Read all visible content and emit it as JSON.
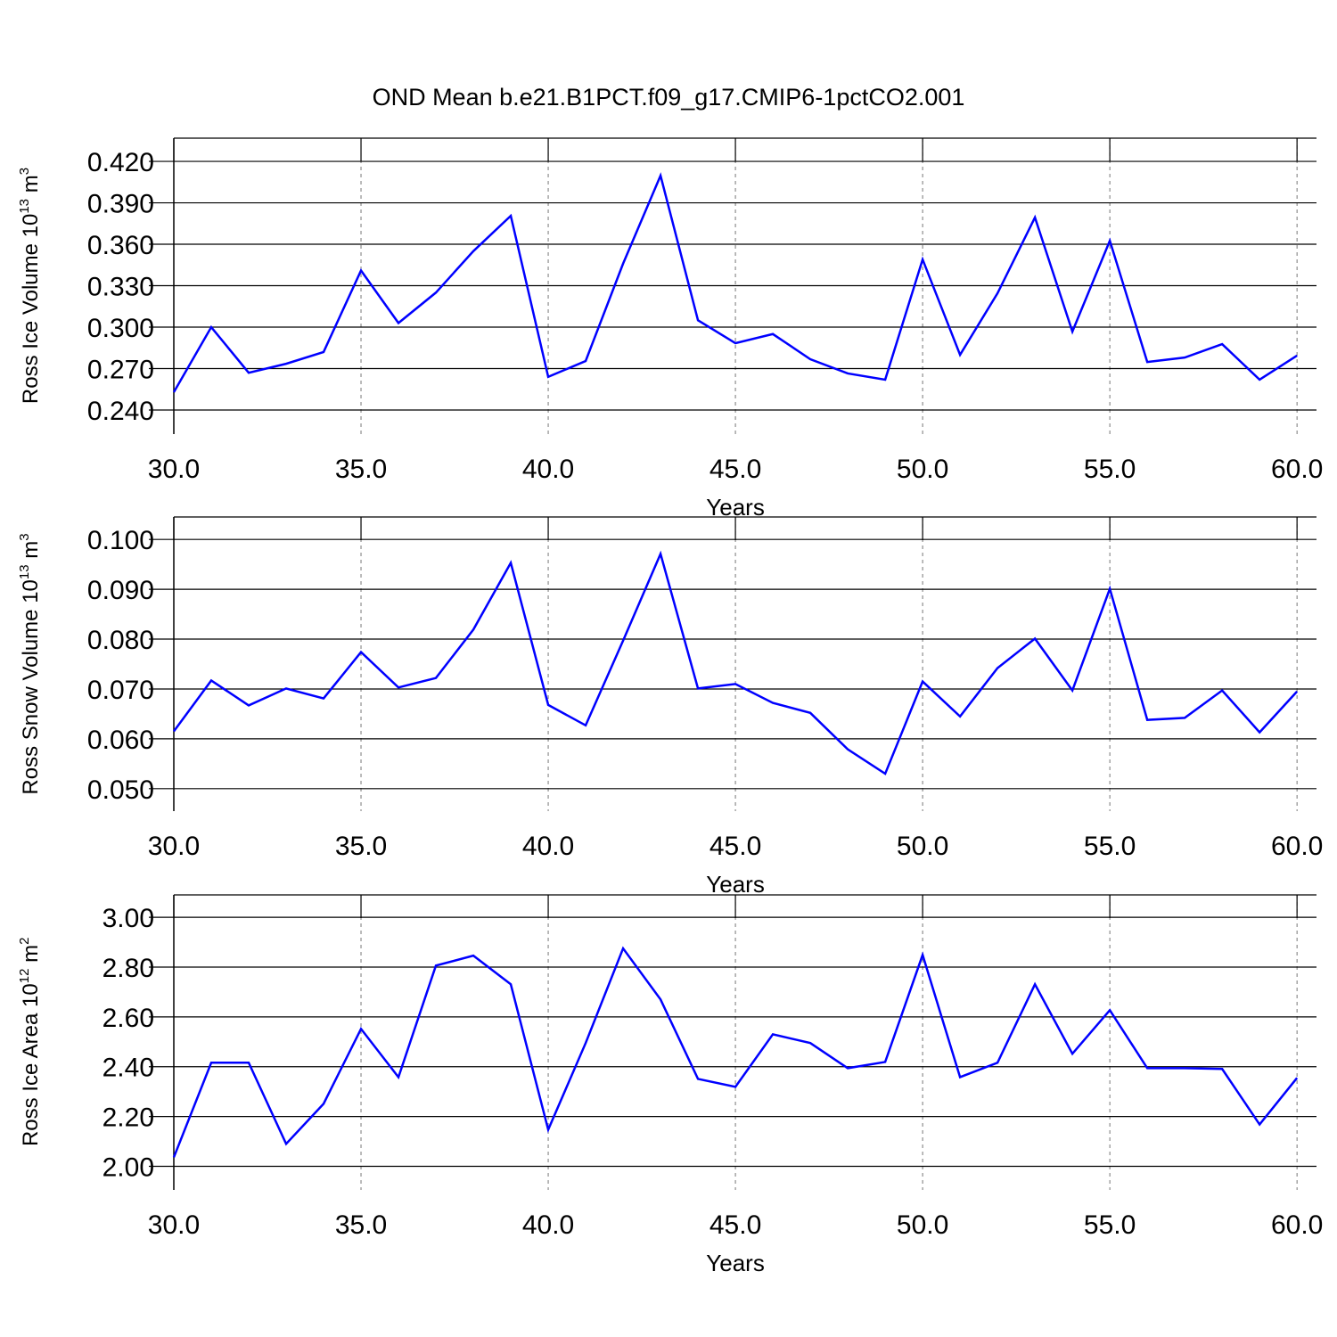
{
  "chart_data": [
    {
      "type": "line",
      "title": "OND Mean b.e21.B1PCT.f09_g17.CMIP6-1pctCO2.001",
      "xlabel": "Years",
      "ylabel": {
        "text": "Ross Ice Volume 10",
        "exp": "13",
        "unit": " m",
        "unit_exp": "3"
      },
      "x": [
        30,
        31,
        32,
        33,
        34,
        35,
        36,
        37,
        38,
        39,
        40,
        41,
        42,
        43,
        44,
        45,
        46,
        47,
        48,
        49,
        50,
        51,
        52,
        53,
        54,
        55,
        56,
        57,
        58,
        59,
        60
      ],
      "series": [
        {
          "color": "#0000ff",
          "values": [
            0.2529,
            0.3,
            0.267,
            0.2735,
            0.282,
            0.341,
            0.303,
            0.325,
            0.355,
            0.3806,
            0.264,
            0.2755,
            0.346,
            0.4097,
            0.305,
            0.2884,
            0.295,
            0.2768,
            0.2665,
            0.262,
            0.349,
            0.28,
            0.3245,
            0.3794,
            0.2968,
            0.3626,
            0.2748,
            0.278,
            0.2877,
            0.262,
            0.2794
          ]
        }
      ],
      "xlim": [
        30,
        60.52
      ],
      "ylim": [
        0.2226,
        0.4368
      ],
      "xticks": [
        {
          "value": 30,
          "label": "30.0"
        },
        {
          "value": 35,
          "label": "35.0"
        },
        {
          "value": 40,
          "label": "40.0"
        },
        {
          "value": 45,
          "label": "45.0"
        },
        {
          "value": 50,
          "label": "50.0"
        },
        {
          "value": 55,
          "label": "55.0"
        },
        {
          "value": 60,
          "label": "60.0"
        }
      ],
      "yticks": [
        {
          "value": 0.24,
          "label": "0.240"
        },
        {
          "value": 0.27,
          "label": "0.270"
        },
        {
          "value": 0.3,
          "label": "0.300"
        },
        {
          "value": 0.33,
          "label": "0.330"
        },
        {
          "value": 0.36,
          "label": "0.360"
        },
        {
          "value": 0.39,
          "label": "0.390"
        },
        {
          "value": 0.42,
          "label": "0.420"
        }
      ],
      "xgrid": "dashed",
      "ygrid": true
    },
    {
      "type": "line",
      "xlabel": "Years",
      "ylabel": {
        "text": "Ross Snow Volume 10",
        "exp": "13",
        "unit": " m",
        "unit_exp": "3"
      },
      "x": [
        30,
        31,
        32,
        33,
        34,
        35,
        36,
        37,
        38,
        39,
        40,
        41,
        42,
        43,
        44,
        45,
        46,
        47,
        48,
        49,
        50,
        51,
        52,
        53,
        54,
        55,
        56,
        57,
        58,
        59,
        60
      ],
      "series": [
        {
          "color": "#0000ff",
          "values": [
            0.0615,
            0.0717,
            0.0667,
            0.0701,
            0.0681,
            0.0774,
            0.0703,
            0.0722,
            0.0819,
            0.0953,
            0.0668,
            0.0627,
            0.0797,
            0.0971,
            0.0701,
            0.071,
            0.0672,
            0.0652,
            0.0579,
            0.053,
            0.0715,
            0.0645,
            0.0742,
            0.0801,
            0.0697,
            0.0901,
            0.0638,
            0.0642,
            0.0697,
            0.0613,
            0.0695
          ]
        }
      ],
      "xlim": [
        30,
        60.52
      ],
      "ylim": [
        0.0455,
        0.1045
      ],
      "xticks": [
        {
          "value": 30,
          "label": "30.0"
        },
        {
          "value": 35,
          "label": "35.0"
        },
        {
          "value": 40,
          "label": "40.0"
        },
        {
          "value": 45,
          "label": "45.0"
        },
        {
          "value": 50,
          "label": "50.0"
        },
        {
          "value": 55,
          "label": "55.0"
        },
        {
          "value": 60,
          "label": "60.0"
        }
      ],
      "yticks": [
        {
          "value": 0.05,
          "label": "0.050"
        },
        {
          "value": 0.06,
          "label": "0.060"
        },
        {
          "value": 0.07,
          "label": "0.070"
        },
        {
          "value": 0.08,
          "label": "0.080"
        },
        {
          "value": 0.09,
          "label": "0.090"
        },
        {
          "value": 0.1,
          "label": "0.100"
        }
      ],
      "xgrid": "dashed",
      "ygrid": true
    },
    {
      "type": "line",
      "xlabel": "Years",
      "ylabel": {
        "text": "Ross Ice Area 10",
        "exp": "12",
        "unit": " m",
        "unit_exp": "2"
      },
      "x": [
        30,
        31,
        32,
        33,
        34,
        35,
        36,
        37,
        38,
        39,
        40,
        41,
        42,
        43,
        44,
        45,
        46,
        47,
        48,
        49,
        50,
        51,
        52,
        53,
        54,
        55,
        56,
        57,
        58,
        59,
        60
      ],
      "series": [
        {
          "color": "#0000ff",
          "values": [
            2.036,
            2.416,
            2.416,
            2.09,
            2.251,
            2.552,
            2.358,
            2.806,
            2.846,
            2.731,
            2.147,
            2.495,
            2.875,
            2.67,
            2.351,
            2.319,
            2.53,
            2.495,
            2.394,
            2.419,
            2.849,
            2.358,
            2.416,
            2.731,
            2.452,
            2.627,
            2.394,
            2.394,
            2.391,
            2.168,
            2.355
          ]
        }
      ],
      "xlim": [
        30,
        60.52
      ],
      "ylim": [
        1.905,
        3.09
      ],
      "xticks": [
        {
          "value": 30,
          "label": "30.0"
        },
        {
          "value": 35,
          "label": "35.0"
        },
        {
          "value": 40,
          "label": "40.0"
        },
        {
          "value": 45,
          "label": "45.0"
        },
        {
          "value": 50,
          "label": "50.0"
        },
        {
          "value": 55,
          "label": "55.0"
        },
        {
          "value": 60,
          "label": "60.0"
        }
      ],
      "yticks": [
        {
          "value": 2,
          "label": "2.00"
        },
        {
          "value": 2.2,
          "label": "2.20"
        },
        {
          "value": 2.4,
          "label": "2.40"
        },
        {
          "value": 2.6,
          "label": "2.60"
        },
        {
          "value": 2.8,
          "label": "2.80"
        },
        {
          "value": 3,
          "label": "3.00"
        }
      ],
      "xgrid": "dashed",
      "ygrid": true
    }
  ]
}
